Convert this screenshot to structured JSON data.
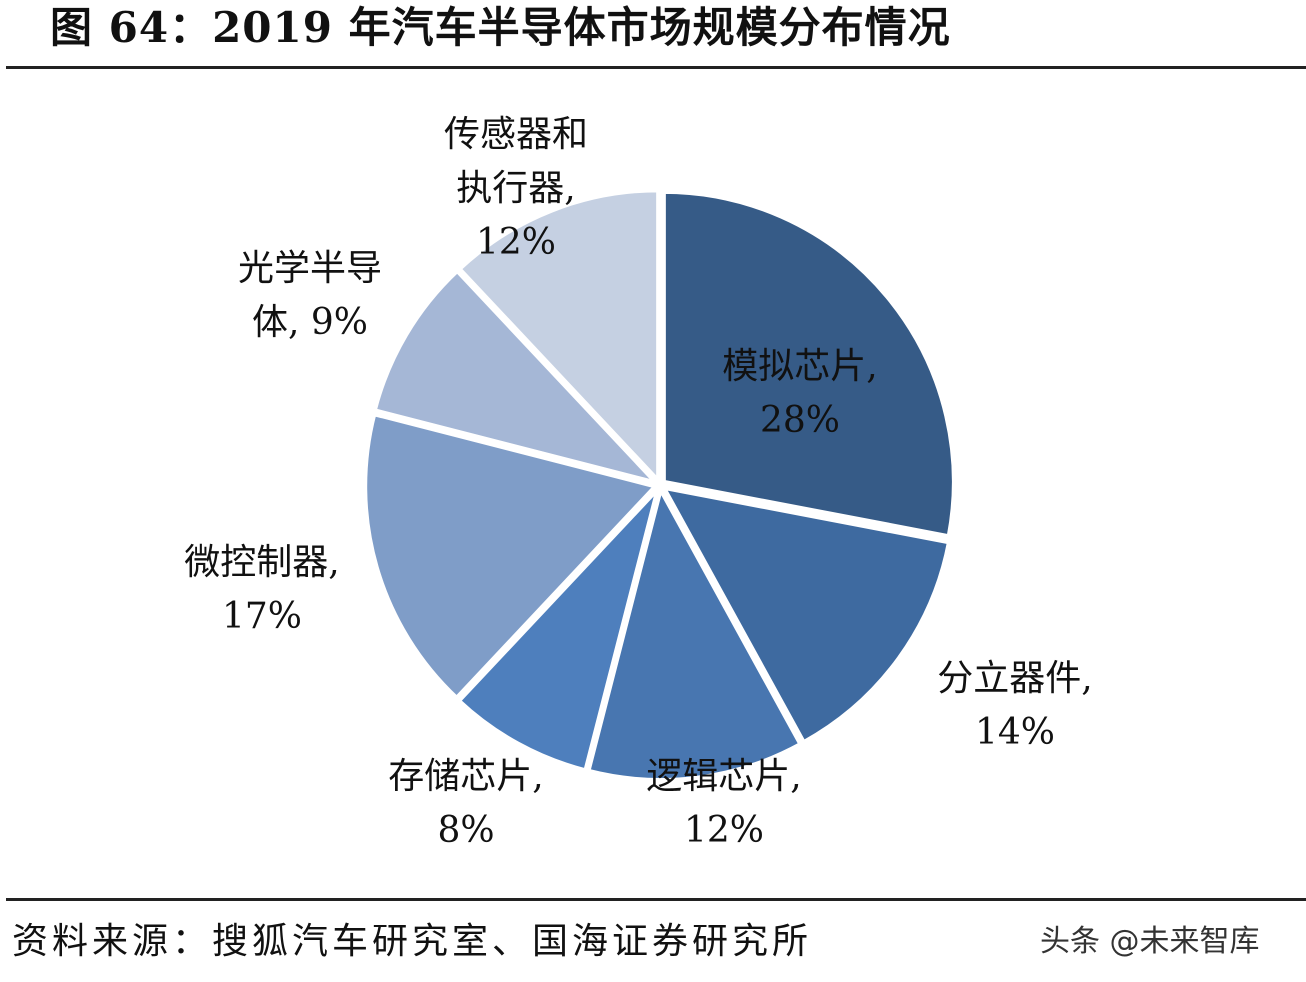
{
  "figure": {
    "title": "图 64：2019 年汽车半导体市场规模分布情况",
    "source": "资料来源：搜狐汽车研究室、国海证券研究所",
    "watermark": "头条 @未来智库"
  },
  "chart_data": {
    "type": "pie",
    "title": "2019 年汽车半导体市场规模分布情况",
    "start_angle": "12 o'clock, clockwise",
    "categories": [
      "模拟芯片",
      "分立器件",
      "逻辑芯片",
      "存储芯片",
      "微控制器",
      "光学半导体",
      "传感器和执行器"
    ],
    "values": [
      28,
      14,
      12,
      8,
      17,
      9,
      12
    ],
    "unit": "%",
    "colors": [
      "#365b87",
      "#3e6aa0",
      "#4876b0",
      "#4e7fbd",
      "#7f9dc8",
      "#a5b7d6",
      "#c5d0e2"
    ],
    "data_labels": [
      {
        "name_lines": [
          "模拟芯片,"
        ],
        "value": "28%"
      },
      {
        "name_lines": [
          "分立器件,"
        ],
        "value": "14%"
      },
      {
        "name_lines": [
          "逻辑芯片,"
        ],
        "value": "12%"
      },
      {
        "name_lines": [
          "存储芯片,"
        ],
        "value": "8%"
      },
      {
        "name_lines": [
          "微控制器,"
        ],
        "value": "17%"
      },
      {
        "name_lines": [
          "光学半导",
          "体, 9%"
        ],
        "value": ""
      },
      {
        "name_lines": [
          "传感器和",
          "执行器,"
        ],
        "value": "12%"
      }
    ]
  }
}
